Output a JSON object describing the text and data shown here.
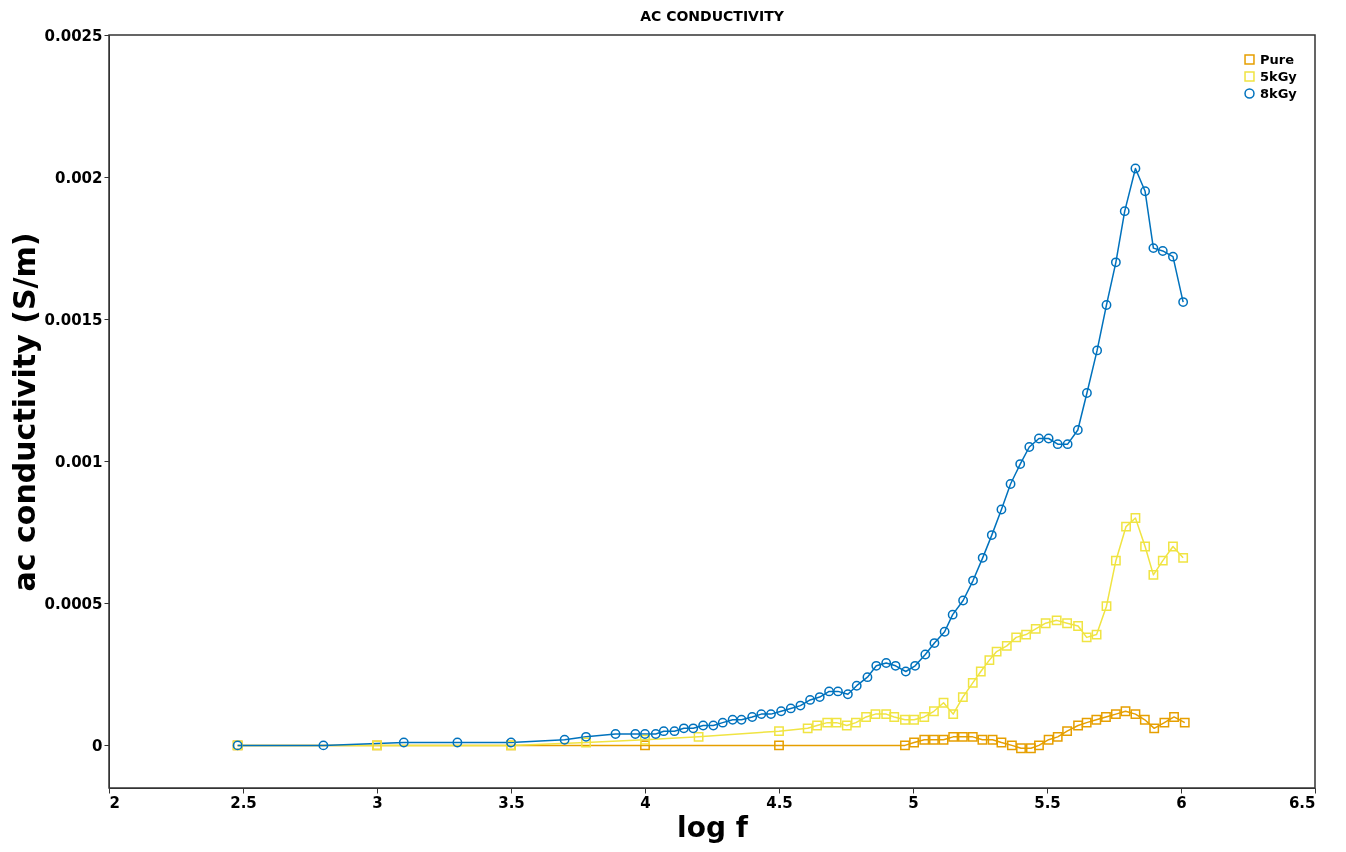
{
  "chart_data": {
    "type": "line",
    "title": "AC CONDUCTIVITY",
    "xlabel": "log f",
    "ylabel": "ac conductivity (S/m)",
    "xlim": [
      2,
      6.5
    ],
    "xticks": [
      2,
      2.5,
      3,
      3.5,
      4,
      4.5,
      5,
      5.5,
      6,
      6.5
    ],
    "ylim": [
      -0.00015,
      0.0025
    ],
    "yticks": [
      0,
      0.0005,
      0.001,
      0.0015,
      0.002,
      0.0025
    ],
    "legend": "top right",
    "line_style": "solid",
    "series": [
      {
        "name": "Pure",
        "color": "#e69f00",
        "marker": "square",
        "x": [
          2.48,
          3.0,
          3.5,
          4.0,
          4.5,
          4.97,
          5.004,
          5.042,
          5.078,
          5.114,
          5.15,
          5.186,
          5.223,
          5.259,
          5.297,
          5.33,
          5.369,
          5.403,
          5.44,
          5.47,
          5.506,
          5.54,
          5.575,
          5.616,
          5.648,
          5.684,
          5.72,
          5.757,
          5.793,
          5.83,
          5.865,
          5.9,
          5.938,
          5.974,
          6.014
        ],
        "values": [
          0,
          0,
          0,
          0,
          0,
          0,
          1e-05,
          2e-05,
          2e-05,
          2e-05,
          3e-05,
          3e-05,
          3e-05,
          2e-05,
          2e-05,
          1e-05,
          0,
          -1e-05,
          -1e-05,
          0,
          2e-05,
          3e-05,
          5e-05,
          7e-05,
          8e-05,
          9e-05,
          0.0001,
          0.00011,
          0.00012,
          0.00011,
          9e-05,
          6e-05,
          8e-05,
          0.0001,
          8e-05
        ]
      },
      {
        "name": "5kGy",
        "color": "#f0e442",
        "marker": "square",
        "x": [
          2.48,
          3.0,
          3.5,
          3.78,
          4.0,
          4.2,
          4.5,
          4.607,
          4.642,
          4.68,
          4.715,
          4.753,
          4.787,
          4.825,
          4.86,
          4.9,
          4.93,
          4.97,
          5.004,
          5.042,
          5.078,
          5.114,
          5.15,
          5.186,
          5.223,
          5.253,
          5.285,
          5.312,
          5.35,
          5.385,
          5.422,
          5.458,
          5.495,
          5.536,
          5.575,
          5.616,
          5.648,
          5.685,
          5.722,
          5.757,
          5.795,
          5.83,
          5.866,
          5.897,
          5.932,
          5.97,
          6.008
        ],
        "values": [
          0,
          0,
          0,
          1e-05,
          2e-05,
          3e-05,
          5e-05,
          6e-05,
          7e-05,
          8e-05,
          8e-05,
          7e-05,
          8e-05,
          0.0001,
          0.00011,
          0.00011,
          0.0001,
          9e-05,
          9e-05,
          0.0001,
          0.00012,
          0.00015,
          0.00011,
          0.00017,
          0.00022,
          0.00026,
          0.0003,
          0.00033,
          0.00035,
          0.00038,
          0.00039,
          0.00041,
          0.00043,
          0.00044,
          0.00043,
          0.00042,
          0.00038,
          0.00039,
          0.00049,
          0.00065,
          0.00077,
          0.0008,
          0.0007,
          0.0006,
          0.00065,
          0.0007,
          0.00066
        ]
      },
      {
        "name": "8kGy",
        "color": "#0072bd",
        "marker": "circle",
        "x": [
          2.48,
          2.8,
          3.1,
          3.3,
          3.5,
          3.7,
          3.78,
          3.89,
          3.964,
          4.0,
          4.04,
          4.07,
          4.11,
          4.145,
          4.18,
          4.217,
          4.255,
          4.29,
          4.327,
          4.36,
          4.4,
          4.434,
          4.47,
          4.508,
          4.544,
          4.58,
          4.616,
          4.652,
          4.687,
          4.72,
          4.757,
          4.79,
          4.83,
          4.863,
          4.9,
          4.935,
          4.973,
          5.008,
          5.046,
          5.08,
          5.118,
          5.148,
          5.187,
          5.224,
          5.26,
          5.294,
          5.33,
          5.364,
          5.4,
          5.434,
          5.47,
          5.506,
          5.54,
          5.577,
          5.615,
          5.649,
          5.687,
          5.722,
          5.757,
          5.79,
          5.83,
          5.866,
          5.897,
          5.932,
          5.97,
          6.008
        ],
        "values": [
          0,
          0,
          1e-05,
          1e-05,
          1e-05,
          2e-05,
          3e-05,
          4e-05,
          4e-05,
          4e-05,
          4e-05,
          5e-05,
          5e-05,
          6e-05,
          6e-05,
          7e-05,
          7e-05,
          8e-05,
          9e-05,
          9e-05,
          0.0001,
          0.00011,
          0.00011,
          0.00012,
          0.00013,
          0.00014,
          0.00016,
          0.00017,
          0.00019,
          0.00019,
          0.00018,
          0.00021,
          0.00024,
          0.00028,
          0.00029,
          0.00028,
          0.00026,
          0.00028,
          0.00032,
          0.00036,
          0.0004,
          0.00046,
          0.00051,
          0.00058,
          0.00066,
          0.00074,
          0.00083,
          0.00092,
          0.00099,
          0.00105,
          0.00108,
          0.00108,
          0.00106,
          0.00106,
          0.00111,
          0.00124,
          0.00139,
          0.00155,
          0.0017,
          0.00188,
          0.00203,
          0.00195,
          0.00175,
          0.00174,
          0.00172,
          0.00156
        ]
      }
    ]
  }
}
